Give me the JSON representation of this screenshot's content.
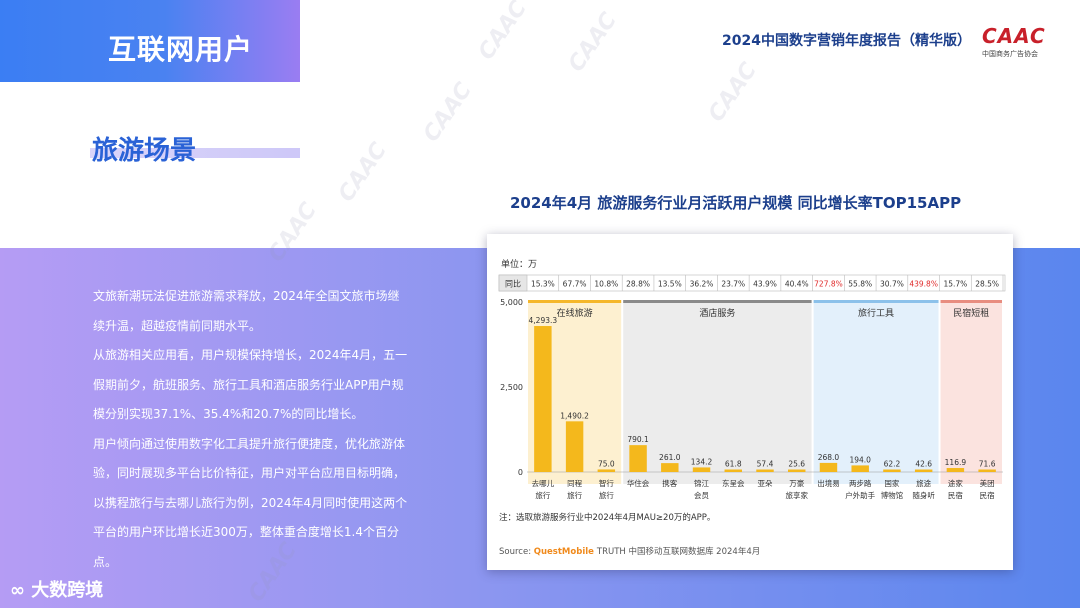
{
  "header": {
    "title": "互联网用户"
  },
  "report": {
    "title": "2024中国数字营销年度报告（精华版）"
  },
  "logo": {
    "text": "CAAC",
    "subtitle": "中国商务广告协会"
  },
  "section": {
    "title": "旅游场景"
  },
  "chart_headline": "2024年4月  旅游服务行业月活跃用户规模  同比增长率TOP15APP",
  "body_paragraphs": [
    "文旅新潮玩法促进旅游需求释放，2024年全国文旅市场继续升温，超越疫情前同期水平。",
    "从旅游相关应用看，用户规模保持增长，2024年4月，五一假期前夕，航班服务、旅行工具和酒店服务行业APP用户规模分别实现37.1%、35.4%和20.7%的同比增长。",
    "用户倾向通过使用数字化工具提升旅行便捷度，优化旅游体验，同时展现多平台比价特征，用户对平台应用目标明确，以携程旅行与去哪儿旅行为例，2024年4月同时使用这两个平台的用户环比增长近300万，整体重合度增长1.4个百分点。"
  ],
  "footer": {
    "brand": "大数跨境"
  },
  "watermark_text": "CAAC",
  "chart_data": {
    "type": "bar",
    "unit_label": "单位：万",
    "yoy_label": "同比",
    "categories": [
      [
        "去哪儿",
        "旅行"
      ],
      [
        "同程",
        "旅行"
      ],
      [
        "智行",
        "旅行"
      ],
      [
        "华住会"
      ],
      [
        "携客"
      ],
      [
        "锦江",
        "会员"
      ],
      [
        "东呈会"
      ],
      [
        "亚朵"
      ],
      [
        "万豪",
        "旅享家"
      ],
      [
        "出境易"
      ],
      [
        "两步路",
        "户外助手"
      ],
      [
        "国家",
        "博物馆"
      ],
      [
        "旅途",
        "随身听"
      ],
      [
        "途家",
        "民宿"
      ],
      [
        "美团",
        "民宿"
      ]
    ],
    "values": [
      4293.3,
      1490.2,
      75.0,
      790.1,
      261.0,
      134.2,
      61.8,
      57.4,
      25.6,
      268.0,
      194.0,
      62.2,
      42.6,
      116.9,
      71.6
    ],
    "value_labels": [
      "4,293.3",
      "1,490.2",
      "75.0",
      "790.1",
      "261.0",
      "134.2",
      "61.8",
      "57.4",
      "25.6",
      "268.0",
      "194.0",
      "62.2",
      "42.6",
      "116.9",
      "71.6"
    ],
    "yoy": [
      "15.3%",
      "67.7%",
      "10.8%",
      "28.8%",
      "13.5%",
      "36.2%",
      "23.7%",
      "43.9%",
      "40.4%",
      "727.8%",
      "55.8%",
      "30.7%",
      "439.8%",
      "15.7%",
      "28.5%"
    ],
    "yoy_highlight": [
      false,
      false,
      false,
      false,
      false,
      false,
      false,
      false,
      false,
      true,
      false,
      false,
      true,
      false,
      false
    ],
    "groups": [
      {
        "name": "在线旅游",
        "start": 0,
        "end": 2,
        "bg": "#fdf0d0",
        "line": "#f5b72a"
      },
      {
        "name": "酒店服务",
        "start": 3,
        "end": 8,
        "bg": "#ececec",
        "line": "#8a8a8a"
      },
      {
        "name": "旅行工具",
        "start": 9,
        "end": 12,
        "bg": "#e3f0fb",
        "line": "#8cc1ea"
      },
      {
        "name": "民宿短租",
        "start": 13,
        "end": 14,
        "bg": "#fbe3df",
        "line": "#e88d80"
      }
    ],
    "ylim": [
      0,
      5000
    ],
    "yticks": [
      0,
      2500,
      5000
    ],
    "ytick_labels": [
      "0",
      "2,500",
      "5,000"
    ],
    "note": "注：选取旅游服务行业中2024年4月MAU≥20万的APP。",
    "source_prefix": "Source:",
    "source_brand": "QuestMobile",
    "source_rest": "TRUTH 中国移动互联网数据库 2024年4月",
    "bar_color": "#f4b81c",
    "highlight_color": "#e02b2b"
  }
}
